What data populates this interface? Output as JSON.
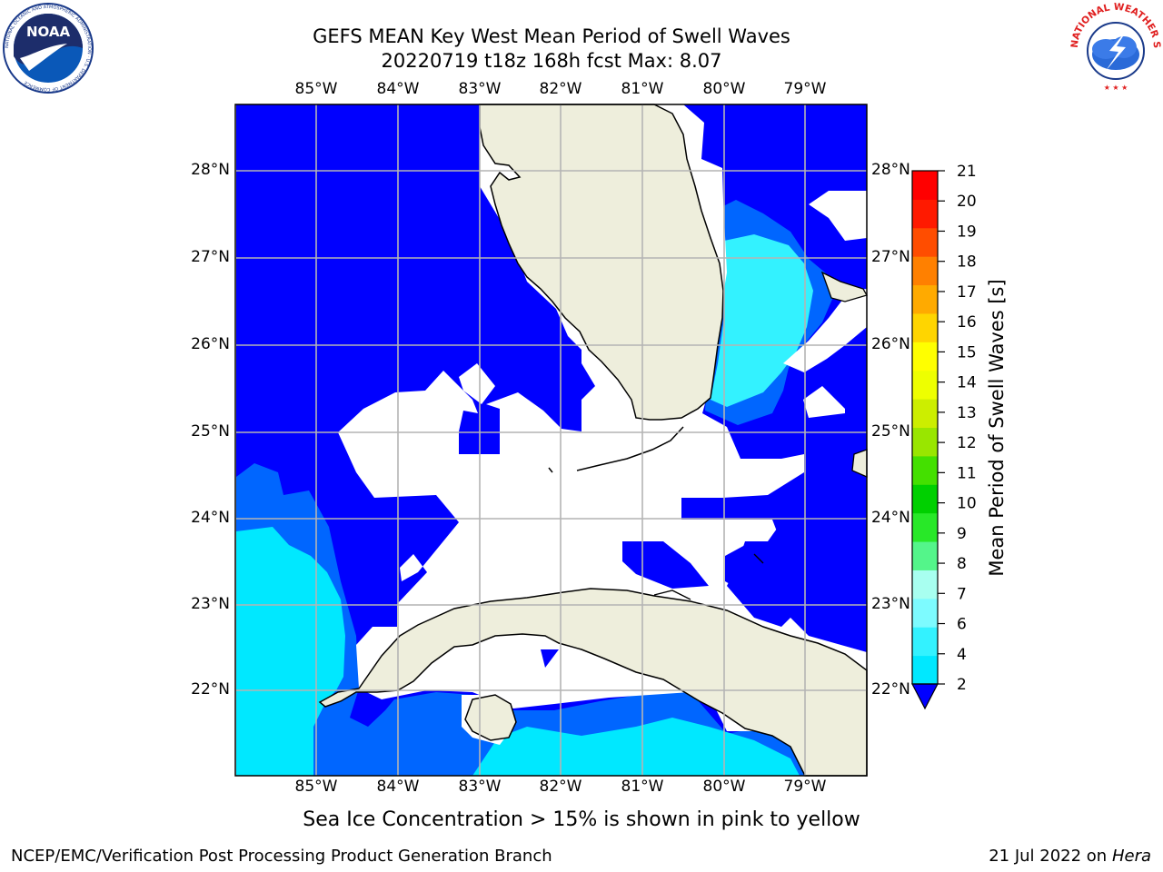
{
  "header": {
    "title_line1": "GEFS MEAN Key West Mean Period of Swell Waves",
    "title_line2": "20220719 t18z 168h fcst   Max: 8.07"
  },
  "logos": {
    "left": {
      "name": "noaa-logo",
      "text": "NOAA",
      "ring_text": "NATIONAL OCEANIC AND ATMOSPHERIC ADMINISTRATION · U.S. DEPARTMENT OF COMMERCE"
    },
    "right": {
      "name": "nws-logo",
      "ring_text": "NATIONAL WEATHER SERVICE"
    }
  },
  "map": {
    "lon_labels": [
      "85°W",
      "84°W",
      "83°W",
      "82°W",
      "81°W",
      "80°W",
      "79°W"
    ],
    "lat_labels": [
      "28°N",
      "27°N",
      "26°N",
      "25°N",
      "24°N",
      "23°N",
      "22°N"
    ],
    "colors": {
      "land": "#eeeedc",
      "coast": "#000000",
      "grid": "#b4b4b4",
      "no_data": "#ffffff"
    }
  },
  "colorbar": {
    "label": "Mean Period of Swell Waves [s]",
    "ticks": [
      "2",
      "4",
      "6",
      "7",
      "8",
      "9",
      "10",
      "11",
      "12",
      "13",
      "14",
      "15",
      "16",
      "17",
      "18",
      "19",
      "20",
      "21"
    ],
    "colors": [
      "#0066ff",
      "#00e8ff",
      "#33f2ff",
      "#7dfbff",
      "#a8fff0",
      "#54f58a",
      "#28e828",
      "#00d000",
      "#44e000",
      "#99e600",
      "#ccee00",
      "#eeff00",
      "#ffff00",
      "#ffd500",
      "#ffaa00",
      "#ff8000",
      "#ff4d00",
      "#ff1a00",
      "#ff0000"
    ],
    "under_color": "#0000ff"
  },
  "footer": {
    "note": "Sea Ice Concentration > 15% is shown in pink to yellow",
    "left": "NCEP/EMC/Verification Post Processing Product Generation Branch",
    "date": "21 Jul 2022 on ",
    "host": "Hera"
  }
}
